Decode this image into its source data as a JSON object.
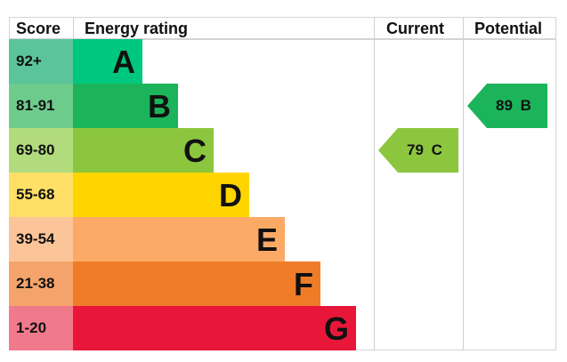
{
  "headers": {
    "score": "Score",
    "energy_rating": "Energy rating",
    "current": "Current",
    "potential": "Potential"
  },
  "bands": [
    {
      "score": "92+",
      "letter": "A",
      "bar_color": "#00c77f",
      "score_color": "#5bc49b",
      "bar_end": 160
    },
    {
      "score": "81-91",
      "letter": "B",
      "bar_color": "#1bb45a",
      "score_color": "#6dcb8c",
      "bar_end": 200
    },
    {
      "score": "69-80",
      "letter": "C",
      "bar_color": "#8cc63f",
      "score_color": "#b2db7e",
      "bar_end": 240
    },
    {
      "score": "55-68",
      "letter": "D",
      "bar_color": "#ffd500",
      "score_color": "#ffe066",
      "bar_end": 280
    },
    {
      "score": "39-54",
      "letter": "E",
      "bar_color": "#fbaa66",
      "score_color": "#fcc499",
      "bar_end": 320
    },
    {
      "score": "21-38",
      "letter": "F",
      "bar_color": "#ef7d28",
      "score_color": "#f4a46b",
      "bar_end": 360
    },
    {
      "score": "1-20",
      "letter": "G",
      "bar_color": "#e8173a",
      "score_color": "#f07a8b",
      "bar_end": 400
    }
  ],
  "current": {
    "label": "79  C",
    "value": 79,
    "band": "C",
    "color": "#8cc63f"
  },
  "potential": {
    "label": "89  B",
    "value": 89,
    "band": "B",
    "color": "#1bb45a"
  },
  "chart_data": {
    "type": "table",
    "title": "Energy rating",
    "columns": [
      "Score",
      "Energy rating",
      "Current",
      "Potential"
    ],
    "rows": [
      {
        "score": "92+",
        "rating": "A"
      },
      {
        "score": "81-91",
        "rating": "B"
      },
      {
        "score": "69-80",
        "rating": "C"
      },
      {
        "score": "55-68",
        "rating": "D"
      },
      {
        "score": "39-54",
        "rating": "E"
      },
      {
        "score": "21-38",
        "rating": "F"
      },
      {
        "score": "1-20",
        "rating": "G"
      }
    ],
    "current": {
      "value": 79,
      "rating": "C"
    },
    "potential": {
      "value": 89,
      "rating": "B"
    }
  }
}
